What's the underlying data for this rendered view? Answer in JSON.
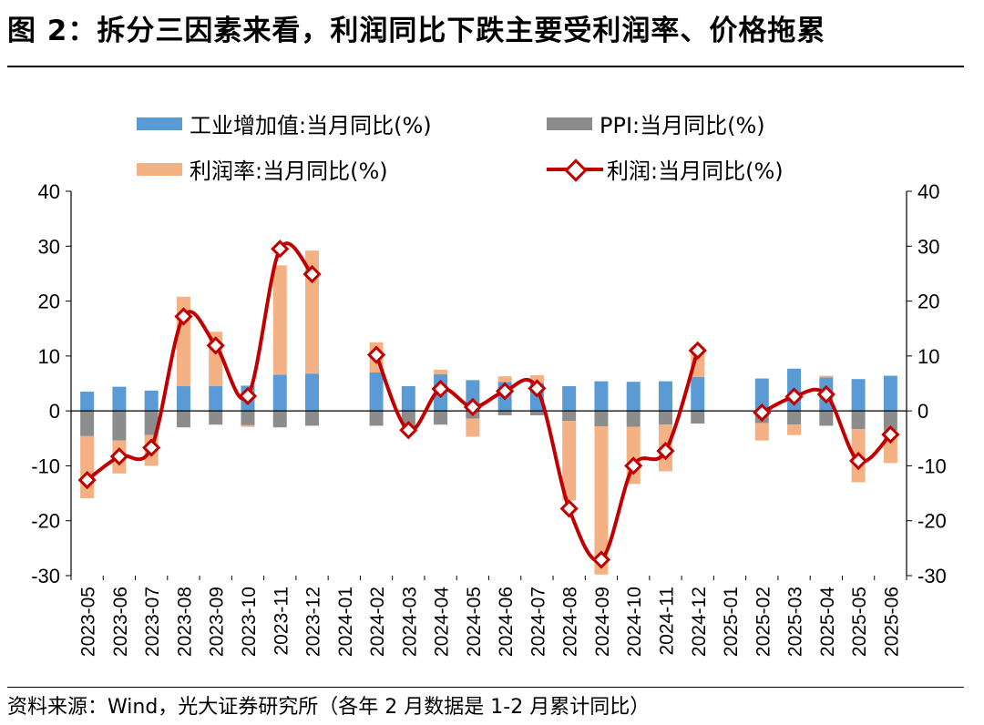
{
  "header": {
    "title": "图 2：拆分三因素来看，利润同比下跌主要受利润率、价格拖累"
  },
  "footer": {
    "source": "资料来源：Wind，光大证券研究所（各年 2 月数据是 1-2 月累计同比）"
  },
  "colors": {
    "industrial": "#5B9BD5",
    "ppi": "#8C8C8C",
    "margin": "#F4B183",
    "profit": "#C00000"
  },
  "chart_data": {
    "type": "bar",
    "stacked": true,
    "dual_axis": true,
    "categories": [
      "2023-05",
      "2023-06",
      "2023-07",
      "2023-08",
      "2023-09",
      "2023-10",
      "2023-11",
      "2023-12",
      "2024-01",
      "2024-02",
      "2024-03",
      "2024-04",
      "2024-05",
      "2024-06",
      "2024-07",
      "2024-08",
      "2024-09",
      "2024-10",
      "2024-11",
      "2024-12",
      "2025-01",
      "2025-02",
      "2025-03",
      "2025-04",
      "2025-05",
      "2025-06"
    ],
    "series": [
      {
        "name": "工业增加值:当月同比(%)",
        "kind": "bar",
        "values": [
          3.5,
          4.4,
          3.7,
          4.5,
          4.5,
          4.6,
          6.6,
          6.8,
          null,
          7.0,
          4.5,
          6.7,
          5.6,
          5.3,
          5.1,
          4.5,
          5.4,
          5.3,
          5.4,
          6.2,
          null,
          5.9,
          7.7,
          6.1,
          5.8,
          6.4
        ]
      },
      {
        "name": "PPI:当月同比(%)",
        "kind": "bar",
        "values": [
          -4.6,
          -5.4,
          -4.4,
          -3.0,
          -2.5,
          -2.6,
          -3.0,
          -2.7,
          null,
          -2.7,
          -2.8,
          -2.5,
          -1.4,
          -0.8,
          -0.8,
          -1.8,
          -2.8,
          -2.9,
          -2.5,
          -2.3,
          null,
          -2.2,
          -2.5,
          -2.7,
          -3.3,
          -3.6
        ]
      },
      {
        "name": "利润率:当月同比(%)",
        "kind": "bar",
        "values": [
          -11.3,
          -6.0,
          -5.6,
          16.3,
          9.9,
          -0.3,
          19.9,
          22.4,
          null,
          5.5,
          -0.5,
          0.8,
          -3.3,
          1.0,
          1.4,
          -14.5,
          -27.0,
          -10.4,
          -8.5,
          5.5,
          null,
          -3.2,
          -1.9,
          0.3,
          -9.7,
          -5.9
        ]
      },
      {
        "name": "利润:当月同比(%)",
        "kind": "line",
        "values": [
          -12.6,
          -8.3,
          -6.7,
          17.2,
          11.9,
          2.7,
          29.5,
          24.9,
          null,
          10.2,
          -3.5,
          4.0,
          0.7,
          3.6,
          4.1,
          -17.8,
          -27.1,
          -10.0,
          -7.3,
          11.0,
          null,
          -0.3,
          2.6,
          3.0,
          -9.1,
          -4.3
        ]
      }
    ],
    "ylim": [
      -30,
      40
    ],
    "y_ticks": [
      -30,
      -20,
      -10,
      0,
      10,
      20,
      30,
      40
    ],
    "y2lim": [
      -30,
      40
    ],
    "legend_position": "top",
    "grid": false
  }
}
